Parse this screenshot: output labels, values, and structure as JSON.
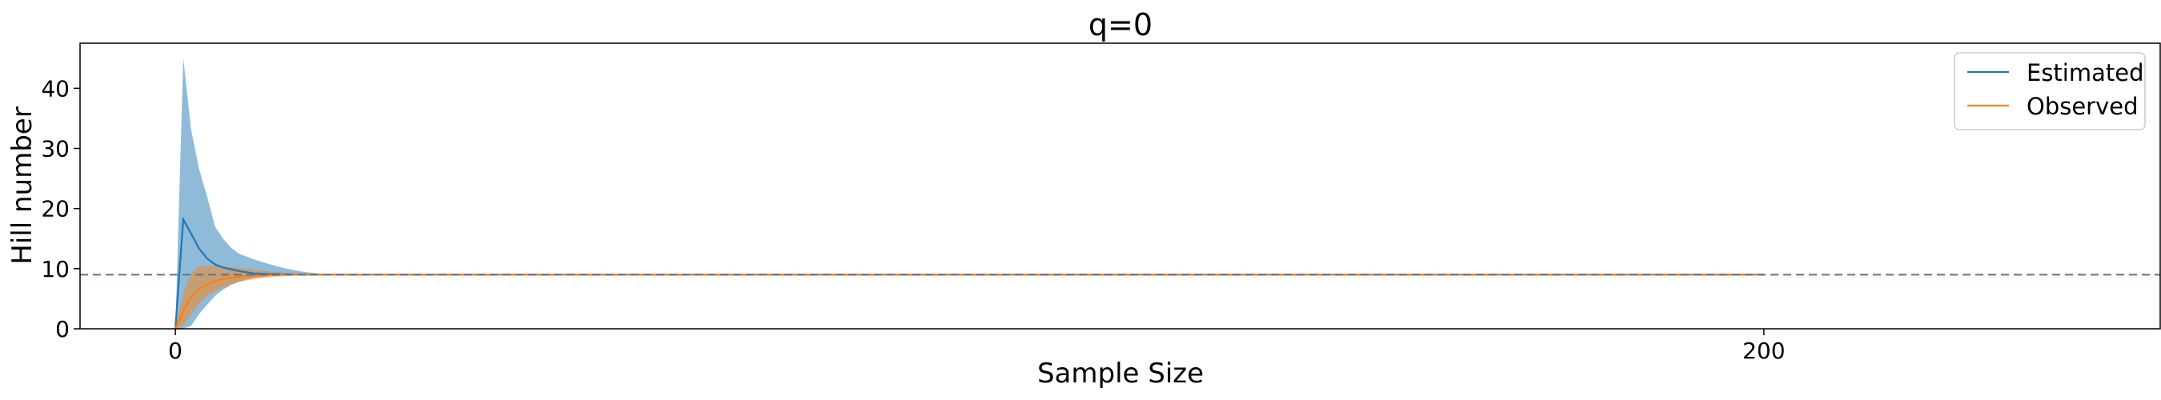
{
  "chart_data": {
    "type": "line",
    "title": "q=0",
    "xlabel": "Sample Size",
    "ylabel": "Hill number",
    "xlim": [
      -12,
      250
    ],
    "ylim": [
      0,
      47.5
    ],
    "xticks": [
      0,
      200
    ],
    "yticks": [
      0,
      10,
      20,
      30,
      40
    ],
    "reference_line": {
      "y": 9,
      "style": "dashed",
      "color": "#5f7385"
    },
    "legend_position": "top-right",
    "series": [
      {
        "name": "Estimated",
        "color": "#1f77b4",
        "band_color": "#1f77b4",
        "x": [
          0,
          1,
          2,
          3,
          4,
          5,
          6,
          7,
          8,
          9,
          10,
          12,
          14,
          16,
          18,
          20,
          200
        ],
        "y": [
          0,
          18.2,
          15.8,
          13.3,
          11.7,
          10.7,
          10.2,
          9.9,
          9.6,
          9.4,
          9.2,
          9.1,
          9.05,
          9.0,
          9.0,
          9.0,
          9.0
        ],
        "lower": [
          0,
          -1.5,
          0.5,
          2.5,
          4.0,
          5.5,
          6.5,
          7.3,
          7.8,
          8.2,
          8.5,
          8.8,
          8.9,
          8.95,
          9.0,
          9.0,
          9.0
        ],
        "upper": [
          0,
          45.0,
          33.0,
          26.5,
          22.0,
          17.0,
          15.0,
          13.5,
          12.5,
          12.0,
          11.5,
          10.7,
          10.0,
          9.5,
          9.2,
          9.0,
          9.0
        ]
      },
      {
        "name": "Observed",
        "color": "#ff7f0e",
        "band_color": "#ff7f0e",
        "x": [
          0,
          1,
          2,
          3,
          4,
          5,
          6,
          7,
          8,
          10,
          12,
          14,
          16,
          18,
          20,
          200
        ],
        "y": [
          0,
          3.0,
          5.3,
          6.6,
          7.4,
          7.9,
          8.3,
          8.5,
          8.7,
          8.85,
          8.95,
          9.0,
          9.0,
          9.0,
          9.0,
          9.0
        ],
        "lower": [
          0,
          0.5,
          2.5,
          4.2,
          5.5,
          6.3,
          6.9,
          7.4,
          7.8,
          8.3,
          8.6,
          8.8,
          8.9,
          8.95,
          9.0,
          9.0
        ],
        "upper": [
          0,
          6.0,
          9.2,
          10.4,
          10.5,
          10.5,
          10.4,
          10.3,
          10.1,
          9.8,
          9.5,
          9.3,
          9.15,
          9.05,
          9.0,
          9.0
        ]
      }
    ]
  }
}
